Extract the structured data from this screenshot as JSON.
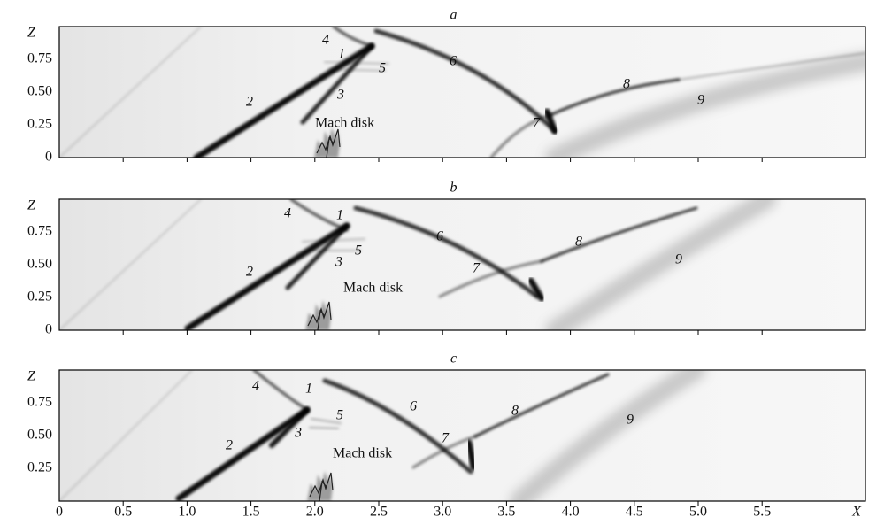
{
  "panels": [
    {
      "label": "a",
      "yticks": [
        "0",
        "0.25",
        "0.50",
        "0.75"
      ],
      "annotations": [
        "1",
        "2",
        "3",
        "4",
        "5",
        "6",
        "7",
        "8",
        "9"
      ],
      "mach_disk": "Mach disk"
    },
    {
      "label": "b",
      "yticks": [
        "0",
        "0.25",
        "0.50",
        "0.75"
      ],
      "annotations": [
        "1",
        "2",
        "3",
        "4",
        "5",
        "6",
        "7",
        "8",
        "9"
      ],
      "mach_disk": "Mach disk"
    },
    {
      "label": "c",
      "yticks": [
        "0.25",
        "0.50",
        "0.75"
      ],
      "annotations": [
        "1",
        "2",
        "3",
        "4",
        "5",
        "6",
        "7",
        "8",
        "9"
      ],
      "mach_disk": "Mach disk"
    }
  ],
  "y_axis": {
    "label": "Z"
  },
  "x_axis": {
    "label": "X",
    "ticks": [
      "0",
      "0.5",
      "1.0",
      "1.5",
      "2.0",
      "2.5",
      "3.0",
      "3.5",
      "4.0",
      "4.5",
      "5.0",
      "5.5"
    ]
  }
}
